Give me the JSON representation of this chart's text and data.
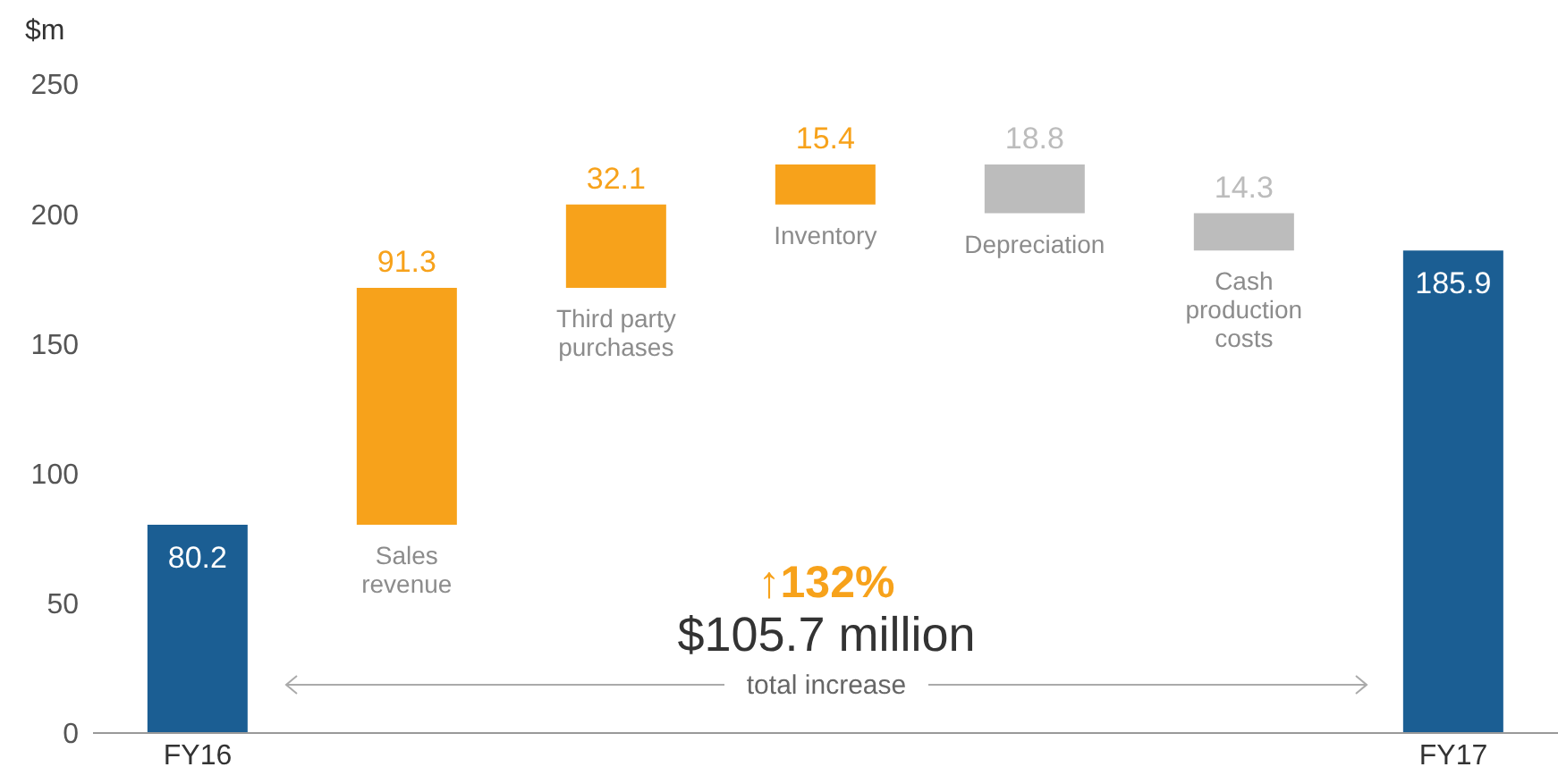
{
  "chart_data": {
    "type": "bar",
    "ylabel": "$m",
    "categories": [
      "FY16",
      "Sales revenue",
      "Third party purchases",
      "Inventory",
      "Depreciation",
      "Cash production costs",
      "FY17"
    ],
    "values": [
      80.2,
      91.3,
      32.1,
      15.4,
      -18.8,
      -14.3,
      185.9
    ],
    "base": [
      0,
      80.2,
      171.5,
      203.6,
      219.0,
      200.2,
      0
    ],
    "colors": [
      "#1b5e93",
      "#f7a21b",
      "#f7a21b",
      "#f7a21b",
      "#bcbcbc",
      "#bcbcbc",
      "#1b5e93"
    ],
    "value_labels": [
      "80.2",
      "91.3",
      "32.1",
      "15.4",
      "18.8",
      "14.3",
      "185.9"
    ],
    "ylim": [
      0,
      250
    ],
    "yticks": [
      0,
      50,
      100,
      150,
      200,
      250
    ],
    "grid": false,
    "legend": false,
    "annotations": [
      "↑132%",
      "$105.7 million",
      "total increase"
    ]
  }
}
